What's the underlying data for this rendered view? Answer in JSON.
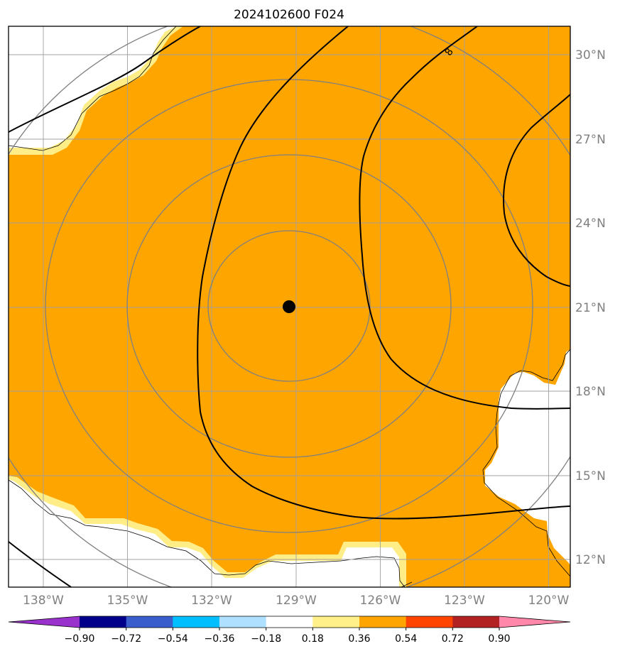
{
  "title": "2024102600 F024",
  "map": {
    "projection": "PlateCarree",
    "lon_range": [
      -139.75,
      -119.25
    ],
    "lat_range": [
      11.0,
      31.0
    ],
    "lon_ticks": [
      {
        "lon": -138,
        "label": "138°W"
      },
      {
        "lon": -135,
        "label": "135°W"
      },
      {
        "lon": -132,
        "label": "132°W"
      },
      {
        "lon": -129,
        "label": "129°W"
      },
      {
        "lon": -126,
        "label": "126°W"
      },
      {
        "lon": -123,
        "label": "123°W"
      },
      {
        "lon": -120,
        "label": "120°W"
      }
    ],
    "lat_ticks": [
      {
        "lat": 12,
        "label": "12°N"
      },
      {
        "lat": 15,
        "label": "15°N"
      },
      {
        "lat": 18,
        "label": "18°N"
      },
      {
        "lat": 21,
        "label": "21°N"
      },
      {
        "lat": 24,
        "label": "24°N"
      },
      {
        "lat": 27,
        "label": "27°N"
      },
      {
        "lat": 30,
        "label": "30°N"
      }
    ],
    "grid": true,
    "storm_center": {
      "lon": -129.25,
      "lat": 21.05
    },
    "range_rings_deg": [
      2.9,
      5.8,
      8.7,
      11.6
    ],
    "fill_color": "#ffa500",
    "fill_edge_color": "#ffee88",
    "contour_label": "8"
  },
  "colorbar": {
    "levels": [
      "-0.90",
      "-0.72",
      "-0.54",
      "-0.36",
      "-0.18",
      "0.18",
      "0.36",
      "0.54",
      "0.72",
      "0.90"
    ],
    "colors": [
      "#9932cc",
      "#00008b",
      "#3a5fcd",
      "#00bfff",
      "#b0e0ff",
      "#ffffff",
      "#fff08a",
      "#ffa500",
      "#ff4500",
      "#b22222",
      "#ff88aa"
    ]
  }
}
